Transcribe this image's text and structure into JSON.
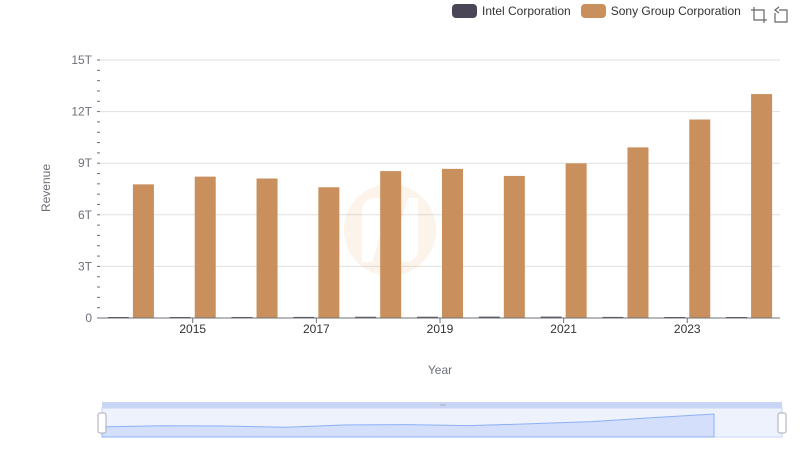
{
  "colors": {
    "intel": "#4a4658",
    "sony": "#c98f5c",
    "grid": "#e0e0e0",
    "axis": "#6e7079",
    "zoom_fill": "#d3dffb",
    "zoom_line": "#8fb0f7",
    "zoom_border": "#c8d5f5"
  },
  "legend": {
    "items": [
      {
        "label": "Intel Corporation",
        "color": "#4a4658"
      },
      {
        "label": "Sony Group Corporation",
        "color": "#c98f5c"
      }
    ]
  },
  "toolbox": {
    "icons": [
      "zoom-icon",
      "restore-icon"
    ]
  },
  "chart_data": {
    "type": "bar",
    "title": "",
    "xlabel": "Year",
    "ylabel": "Revenue",
    "x": [
      2014,
      2015,
      2016,
      2017,
      2018,
      2019,
      2020,
      2021,
      2022,
      2023,
      2024
    ],
    "x_tick_labels": [
      "2015",
      "2017",
      "2019",
      "2021",
      "2023"
    ],
    "y_tick_labels": [
      "0",
      "3T",
      "6T",
      "9T",
      "12T",
      "15T"
    ],
    "ylim": [
      0,
      15000000000000
    ],
    "grid": true,
    "legend_position": "top-right",
    "series": [
      {
        "name": "Intel Corporation",
        "values": [
          55900000000,
          55400000000,
          59400000000,
          62800000000,
          70800000000,
          72000000000,
          77900000000,
          79000000000,
          63100000000,
          54200000000,
          53100000000
        ]
      },
      {
        "name": "Sony Group Corporation",
        "values": [
          7770000000000,
          8220000000000,
          8110000000000,
          7600000000000,
          8540000000000,
          8670000000000,
          8260000000000,
          8990000000000,
          9920000000000,
          11540000000000,
          13020000000000
        ]
      }
    ]
  }
}
